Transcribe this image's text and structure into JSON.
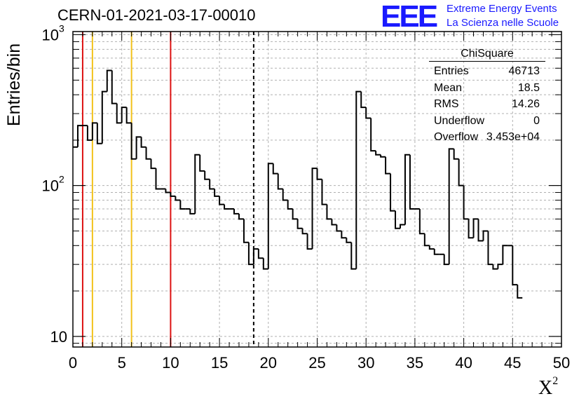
{
  "header": {
    "title": "CERN-01-2021-03-17-00010",
    "logo_text": "EEE",
    "logo_line1": "Extreme Energy Events",
    "logo_line2": "La Scienza nelle Scuole"
  },
  "stats": {
    "title": "ChiSquare",
    "rows": [
      {
        "key": "Entries",
        "value": "46713"
      },
      {
        "key": "Mean",
        "value": "18.5"
      },
      {
        "key": "RMS",
        "value": "14.26"
      },
      {
        "key": "Underflow",
        "value": "0"
      },
      {
        "key": "Overflow",
        "value": "3.453e+04"
      }
    ]
  },
  "colors": {
    "red_line": "#dd1111",
    "yellow_line": "#f2c21b",
    "grid": "#b0b0b0",
    "histogram": "#000000",
    "logo": "#1a1aff"
  },
  "chart_data": {
    "type": "histogram",
    "title": "CERN-01-2021-03-17-00010",
    "xlabel": "X",
    "xlabel_superscript": "2",
    "ylabel": "Entries/bin",
    "xlim": [
      0,
      50
    ],
    "ylim": [
      8.5,
      1050
    ],
    "y_scale": "log",
    "grid": true,
    "x_ticks": [
      "0",
      "5",
      "10",
      "15",
      "20",
      "25",
      "30",
      "35",
      "40",
      "45",
      "50"
    ],
    "y_tick_labels": [
      {
        "value": 10,
        "base": "10",
        "exp": ""
      },
      {
        "value": 100,
        "base": "10",
        "exp": "2"
      },
      {
        "value": 1000,
        "base": "10",
        "exp": "3"
      }
    ],
    "bin_width": 0.5,
    "values": [
      180,
      250,
      250,
      200,
      260,
      190,
      420,
      580,
      350,
      260,
      330,
      260,
      150,
      210,
      180,
      150,
      130,
      95,
      95,
      90,
      85,
      80,
      70,
      70,
      65,
      160,
      125,
      110,
      95,
      85,
      75,
      70,
      70,
      65,
      60,
      42,
      30,
      38,
      33,
      28,
      140,
      120,
      95,
      80,
      70,
      60,
      52,
      48,
      38,
      130,
      110,
      75,
      60,
      55,
      50,
      45,
      42,
      28,
      420,
      330,
      280,
      170,
      160,
      155,
      120,
      68,
      52,
      55,
      160,
      70,
      70,
      48,
      40,
      38,
      35,
      35,
      30,
      175,
      150,
      100,
      60,
      45,
      60,
      43,
      50,
      30,
      28,
      30,
      40,
      40,
      22,
      18
    ],
    "vertical_lines": [
      {
        "x": 1,
        "color": "red",
        "style": "solid"
      },
      {
        "x": 2,
        "color": "yellow",
        "style": "solid"
      },
      {
        "x": 6,
        "color": "yellow",
        "style": "solid"
      },
      {
        "x": 10,
        "color": "red",
        "style": "solid"
      },
      {
        "x": 18.5,
        "color": "black",
        "style": "dashed"
      }
    ]
  }
}
